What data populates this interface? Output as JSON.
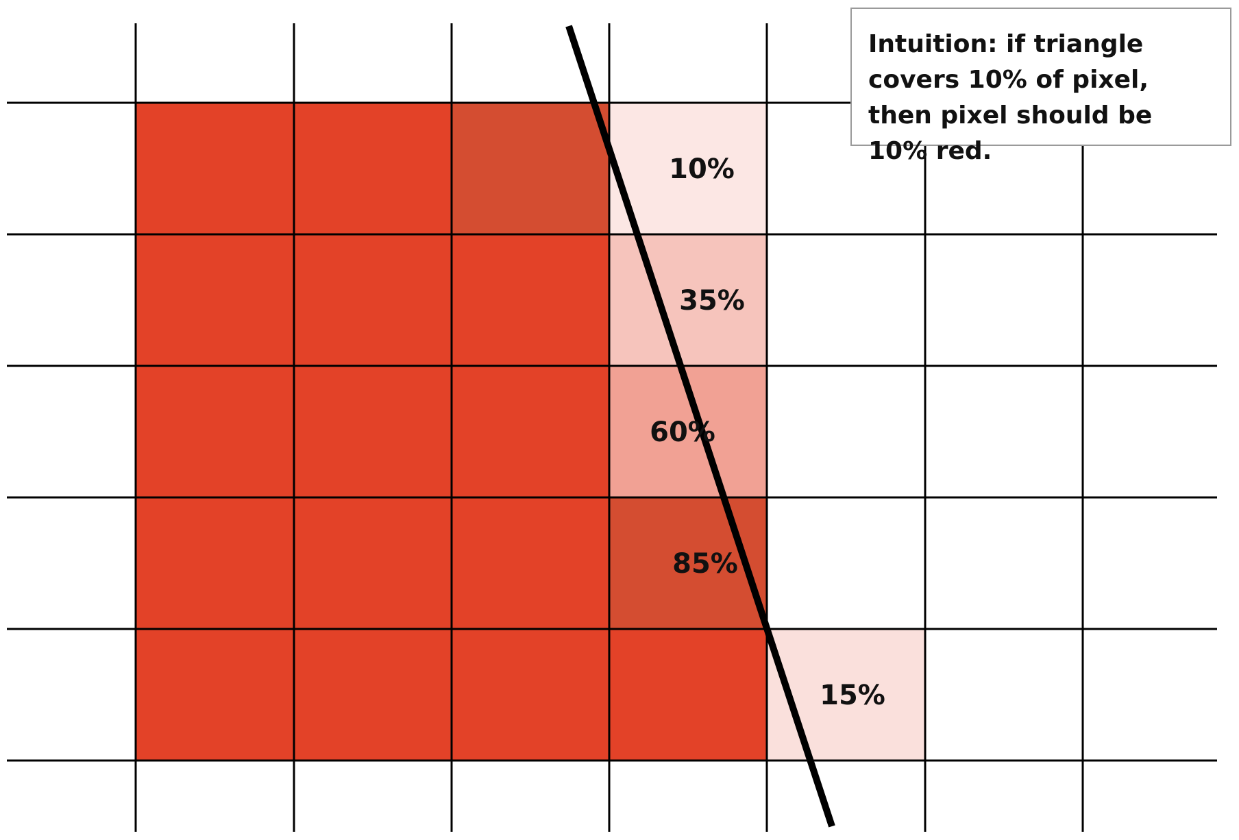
{
  "figure": {
    "caption": "Intuition: if triangle covers 10% of pixel, then pixel should be 10% red.",
    "colors": {
      "inside": "#e34228",
      "boundary_dark": "#d44d31",
      "edge_line": "#000000",
      "grid_line": "#000000",
      "background": "#ffffff"
    },
    "grid": {
      "columns": 7,
      "rows": 5
    },
    "pixels": [
      {
        "col": 0,
        "row": 0,
        "coverage": 1.0,
        "label": ""
      },
      {
        "col": 1,
        "row": 0,
        "coverage": 1.0,
        "label": ""
      },
      {
        "col": 2,
        "row": 0,
        "coverage": 1.0,
        "label": "",
        "shade": "dark"
      },
      {
        "col": 3,
        "row": 0,
        "coverage": 0.1,
        "label": "10%"
      },
      {
        "col": 0,
        "row": 1,
        "coverage": 1.0,
        "label": ""
      },
      {
        "col": 1,
        "row": 1,
        "coverage": 1.0,
        "label": ""
      },
      {
        "col": 2,
        "row": 1,
        "coverage": 1.0,
        "label": ""
      },
      {
        "col": 3,
        "row": 1,
        "coverage": 0.35,
        "label": "35%"
      },
      {
        "col": 0,
        "row": 2,
        "coverage": 1.0,
        "label": ""
      },
      {
        "col": 1,
        "row": 2,
        "coverage": 1.0,
        "label": ""
      },
      {
        "col": 2,
        "row": 2,
        "coverage": 1.0,
        "label": ""
      },
      {
        "col": 3,
        "row": 2,
        "coverage": 0.6,
        "label": "60%"
      },
      {
        "col": 0,
        "row": 3,
        "coverage": 1.0,
        "label": ""
      },
      {
        "col": 1,
        "row": 3,
        "coverage": 1.0,
        "label": ""
      },
      {
        "col": 2,
        "row": 3,
        "coverage": 1.0,
        "label": ""
      },
      {
        "col": 3,
        "row": 3,
        "coverage": 0.85,
        "label": "85%",
        "shade": "dark"
      },
      {
        "col": 0,
        "row": 4,
        "coverage": 1.0,
        "label": ""
      },
      {
        "col": 1,
        "row": 4,
        "coverage": 1.0,
        "label": ""
      },
      {
        "col": 2,
        "row": 4,
        "coverage": 1.0,
        "label": ""
      },
      {
        "col": 3,
        "row": 4,
        "coverage": 1.0,
        "label": ""
      },
      {
        "col": 4,
        "row": 4,
        "coverage": 0.15,
        "label": "15%"
      }
    ]
  }
}
